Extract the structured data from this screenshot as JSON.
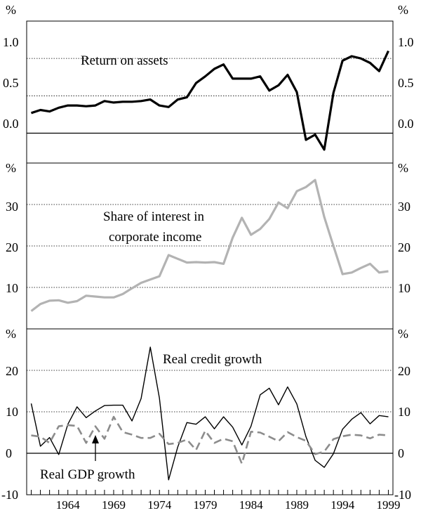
{
  "chart_data": [
    {
      "type": "line",
      "panel": "top",
      "unit_label": "%",
      "ylim": [
        -0.4,
        1.5
      ],
      "yticks": [
        "1.0",
        "0.5",
        "0.0"
      ],
      "ytick_values": [
        1.0,
        0.5,
        0.0
      ],
      "annotation": "Return on assets",
      "series": [
        {
          "name": "Return on assets",
          "color": "#000000",
          "style": "solid-thick",
          "x": [
            1960,
            1961,
            1962,
            1963,
            1964,
            1965,
            1966,
            1967,
            1968,
            1969,
            1970,
            1971,
            1972,
            1973,
            1974,
            1975,
            1976,
            1977,
            1978,
            1979,
            1980,
            1981,
            1982,
            1983,
            1984,
            1985,
            1986,
            1987,
            1988,
            1989,
            1990,
            1991,
            1992,
            1993,
            1994,
            1995,
            1996,
            1997,
            1998,
            1999
          ],
          "values": [
            0.27,
            0.31,
            0.29,
            0.34,
            0.37,
            0.37,
            0.36,
            0.37,
            0.43,
            0.41,
            0.42,
            0.42,
            0.43,
            0.45,
            0.37,
            0.35,
            0.45,
            0.48,
            0.67,
            0.76,
            0.86,
            0.92,
            0.73,
            0.73,
            0.73,
            0.76,
            0.57,
            0.64,
            0.78,
            0.55,
            -0.09,
            -0.02,
            -0.22,
            0.54,
            0.97,
            1.03,
            1.0,
            0.94,
            0.83,
            1.1
          ]
        }
      ]
    },
    {
      "type": "line",
      "panel": "middle",
      "unit_label": "%",
      "ylim": [
        0,
        40
      ],
      "yticks": [
        "30",
        "20",
        "10"
      ],
      "ytick_values": [
        30,
        20,
        10
      ],
      "annotation": [
        "Share of interest in",
        "corporate income"
      ],
      "series": [
        {
          "name": "Share of interest in corporate income",
          "color": "#b3b3b3",
          "style": "solid-thick",
          "x": [
            1960,
            1961,
            1962,
            1963,
            1964,
            1965,
            1966,
            1967,
            1968,
            1969,
            1970,
            1971,
            1972,
            1973,
            1974,
            1975,
            1976,
            1977,
            1978,
            1979,
            1980,
            1981,
            1982,
            1983,
            1984,
            1985,
            1986,
            1987,
            1988,
            1989,
            1990,
            1991,
            1992,
            1993,
            1994,
            1995,
            1996,
            1997,
            1998,
            1999
          ],
          "values": [
            4.3,
            6.0,
            6.8,
            6.9,
            6.3,
            6.7,
            8.0,
            7.8,
            7.6,
            7.6,
            8.4,
            9.8,
            11.1,
            11.9,
            12.7,
            17.8,
            16.9,
            16.0,
            16.1,
            16.0,
            16.1,
            15.7,
            22.0,
            26.8,
            22.7,
            24.1,
            26.5,
            30.5,
            29.1,
            33.2,
            34.2,
            35.9,
            27.0,
            20.0,
            13.2,
            13.6,
            14.7,
            15.7,
            13.6,
            13.9
          ]
        }
      ]
    },
    {
      "type": "line",
      "panel": "bottom",
      "unit_label": "%",
      "ylim": [
        -10,
        30
      ],
      "yticks": [
        "20",
        "10",
        "0",
        "-10"
      ],
      "ytick_values": [
        20,
        10,
        0,
        -10
      ],
      "xticks": [
        "1964",
        "1969",
        "1974",
        "1979",
        "1984",
        "1989",
        "1994",
        "1999"
      ],
      "xtick_values": [
        1964,
        1969,
        1974,
        1979,
        1984,
        1989,
        1994,
        1999
      ],
      "annotations": [
        "Real credit growth",
        "Real GDP growth"
      ],
      "series": [
        {
          "name": "Real credit growth",
          "color": "#000000",
          "style": "solid-thin",
          "x": [
            1960,
            1961,
            1962,
            1963,
            1964,
            1965,
            1966,
            1967,
            1968,
            1969,
            1970,
            1971,
            1972,
            1973,
            1974,
            1975,
            1976,
            1977,
            1978,
            1979,
            1980,
            1981,
            1982,
            1983,
            1984,
            1985,
            1986,
            1987,
            1988,
            1989,
            1990,
            1991,
            1992,
            1993,
            1994,
            1995,
            1996,
            1997,
            1998,
            1999
          ],
          "values": [
            12.0,
            1.7,
            3.8,
            -0.3,
            7.0,
            11.2,
            8.6,
            10.2,
            11.5,
            11.6,
            11.6,
            7.8,
            13.2,
            25.6,
            13.3,
            -6.4,
            1.5,
            7.4,
            7.0,
            8.8,
            5.9,
            8.8,
            6.3,
            2.0,
            6.5,
            14.1,
            15.7,
            11.7,
            16.0,
            11.9,
            4.0,
            -1.7,
            -3.4,
            -0.1,
            5.8,
            8.2,
            9.8,
            7.1,
            9.1,
            8.8
          ]
        },
        {
          "name": "Real GDP growth",
          "color": "#8c8c8c",
          "style": "dashed",
          "x": [
            1960,
            1961,
            1962,
            1963,
            1964,
            1965,
            1966,
            1967,
            1968,
            1969,
            1970,
            1971,
            1972,
            1973,
            1974,
            1975,
            1976,
            1977,
            1978,
            1979,
            1980,
            1981,
            1982,
            1983,
            1984,
            1985,
            1986,
            1987,
            1988,
            1989,
            1990,
            1991,
            1992,
            1993,
            1994,
            1995,
            1996,
            1997,
            1998,
            1999
          ],
          "values": [
            4.3,
            4.0,
            2.5,
            6.5,
            6.8,
            6.6,
            2.5,
            6.5,
            3.5,
            8.8,
            5.1,
            4.5,
            3.7,
            3.7,
            4.7,
            2.2,
            2.5,
            3.3,
            0.8,
            5.4,
            2.5,
            3.5,
            2.9,
            -2.5,
            5.2,
            5.0,
            4.0,
            2.9,
            5.1,
            3.9,
            3.0,
            -0.2,
            0.4,
            3.4,
            4.1,
            4.5,
            4.3,
            3.6,
            4.5,
            4.3
          ]
        }
      ]
    }
  ]
}
